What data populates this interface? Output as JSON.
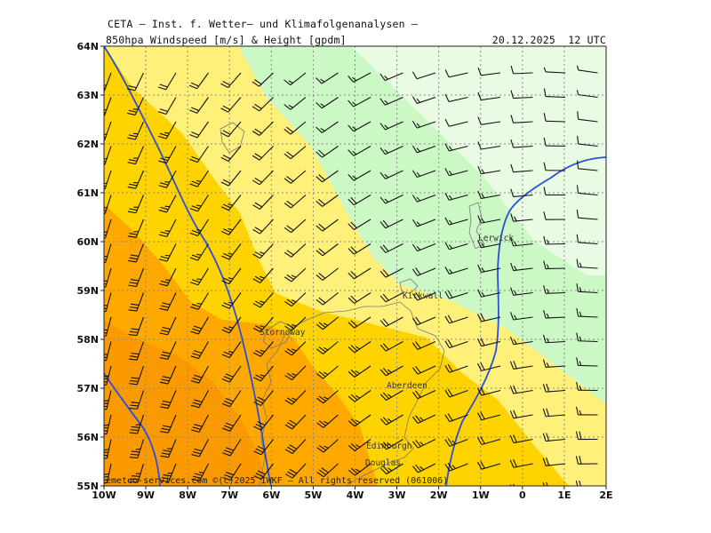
{
  "header": {
    "org": "CETA – Inst. f. Wetter– und Klimafolgenanalysen –",
    "title": "850hpa_Windspeed_[m/s]_&_Height_[gpdm]",
    "date": "20.12.2025  12 UTC"
  },
  "axes": {
    "lat_labels": [
      "64N",
      "63N",
      "62N",
      "61N",
      "60N",
      "59N",
      "58N",
      "57N",
      "56N",
      "55N"
    ],
    "lon_labels": [
      "10W",
      "9W",
      "8W",
      "7W",
      "6W",
      "5W",
      "4W",
      "3W",
      "2W",
      "1W",
      "0",
      "1E",
      "2E"
    ]
  },
  "cities": [
    {
      "name": "Lerwick"
    },
    {
      "name": "Kirkwall"
    },
    {
      "name": "Stornoway"
    },
    {
      "name": "Aberdeen"
    },
    {
      "name": "Edinburgh"
    },
    {
      "name": "Douglas"
    }
  ],
  "footer": {
    "copyright": "emeteo-services.com ©(c)2025 IWKF – All rights reserved (061006)"
  },
  "map": {
    "extent": {
      "lon": [
        -10,
        2
      ],
      "lat": [
        55,
        64
      ]
    },
    "field": "850hPa wind speed (m/s) shaded, height (gpdm) contours, wind barbs",
    "colors": {
      "band0": "#eafbe4",
      "band1": "#ccf8c6",
      "band2": "#fff07a",
      "band3": "#ffd300",
      "band4": "#ffa800",
      "band5": "#fb9a00",
      "contour": "#2a4fd8",
      "coast": "#777777",
      "grid": "#8a8a8a"
    }
  }
}
